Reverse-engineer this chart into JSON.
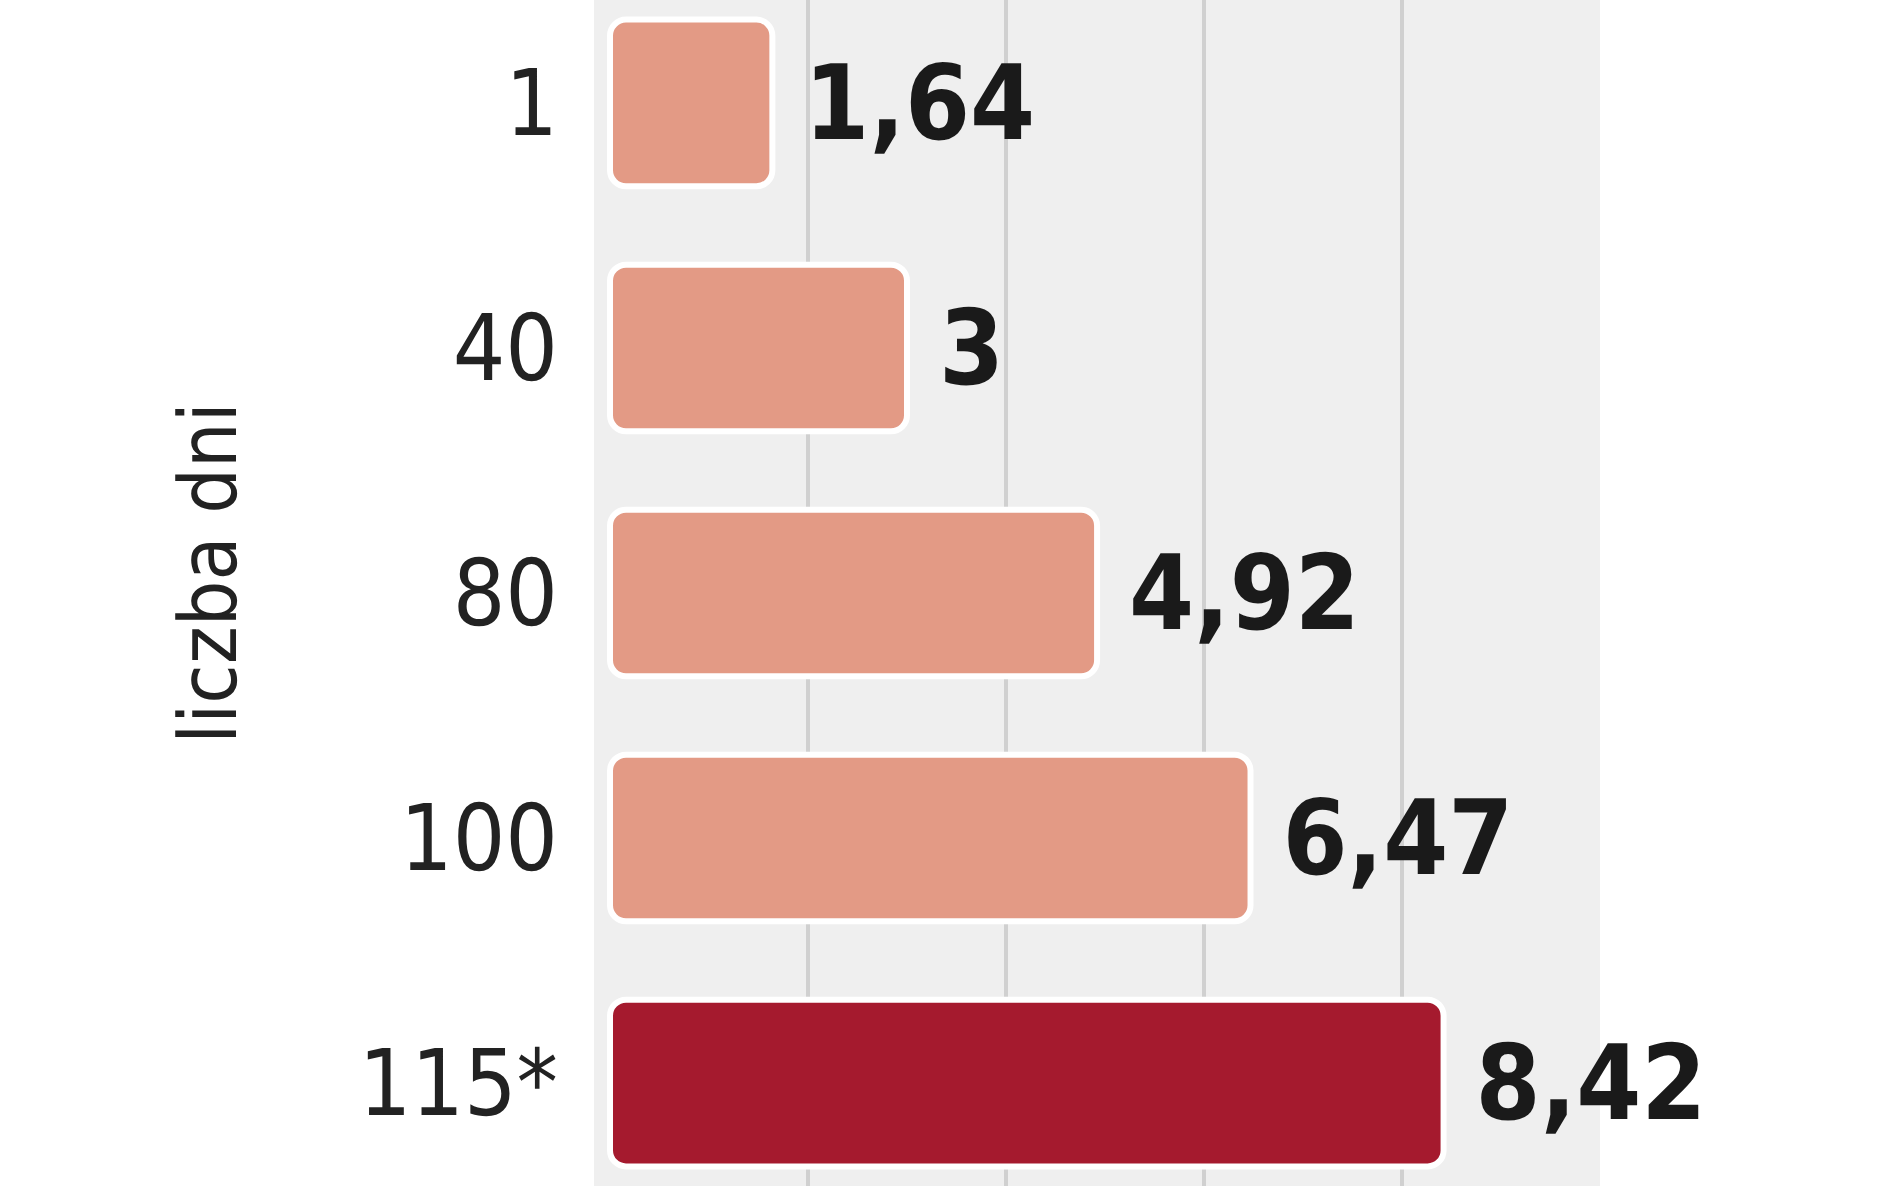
{
  "chart_data": {
    "type": "bar",
    "orientation": "horizontal",
    "ylabel": "liczba dni",
    "categories": [
      "1",
      "40",
      "80",
      "100",
      "115*"
    ],
    "values": [
      1.64,
      3,
      4.92,
      6.47,
      8.42
    ],
    "colors": [
      "#e39a85",
      "#e39a85",
      "#e39a85",
      "#e39a85",
      "#a51a2e"
    ],
    "value_labels": [
      "1,64",
      "3",
      "4,92",
      "6,47",
      "8,42"
    ],
    "xlim": [
      0,
      10
    ],
    "xticks": [
      {
        "value": 2,
        "label": null
      },
      {
        "value": 4,
        "label": null
      },
      {
        "value": 6,
        "label": null
      },
      {
        "value": 8,
        "label": null
      }
    ],
    "grid": "x",
    "tick_labels": "y"
  }
}
